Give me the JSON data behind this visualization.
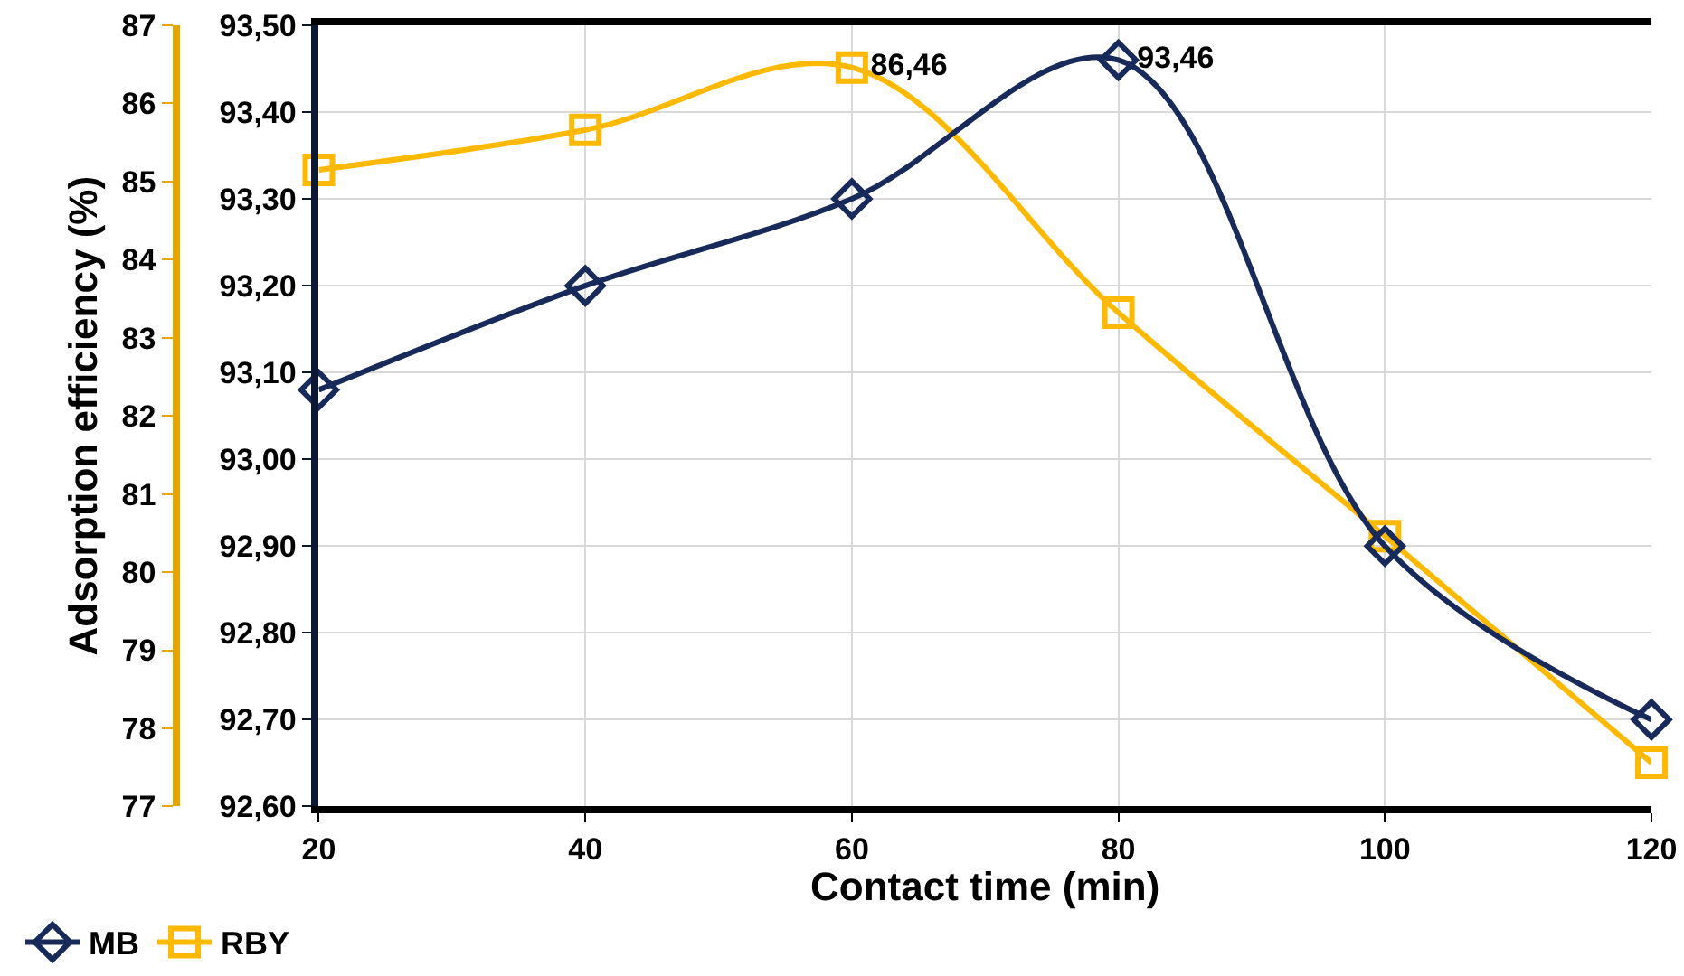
{
  "chart_data": {
    "type": "line",
    "xlabel": "Contact time (min)",
    "ylabel": "Adsorption efficiency (%)",
    "x": [
      20,
      40,
      60,
      80,
      100,
      120
    ],
    "series": [
      {
        "name": "MB",
        "color": "#172a5a",
        "axis": "y2",
        "marker": "diamond",
        "values": [
          93.08,
          93.2,
          93.3,
          93.46,
          92.9,
          92.7
        ],
        "value_labels": [
          null,
          null,
          null,
          "93,46",
          null,
          null
        ]
      },
      {
        "name": "RBY",
        "color": "#ffb900",
        "marker": "square",
        "values": [
          85.15,
          85.66,
          86.46,
          83.32,
          80.46,
          77.56
        ],
        "value_labels": [
          null,
          null,
          "86,46",
          null,
          null,
          null
        ]
      }
    ],
    "xlim": [
      20,
      120
    ],
    "xticks": [
      20,
      40,
      60,
      80,
      100,
      120
    ],
    "ylim": [
      77,
      87
    ],
    "yticks": [
      77,
      78,
      79,
      80,
      81,
      82,
      83,
      84,
      85,
      86,
      87
    ],
    "y2lim": [
      92.6,
      93.5
    ],
    "y2ticks": [
      {
        "value": 92.6,
        "label": "92,60"
      },
      {
        "value": 92.7,
        "label": "92,70"
      },
      {
        "value": 92.8,
        "label": "92,80"
      },
      {
        "value": 92.9,
        "label": "92,90"
      },
      {
        "value": 93.0,
        "label": "93,00"
      },
      {
        "value": 93.1,
        "label": "93,10"
      },
      {
        "value": 93.2,
        "label": "93,20"
      },
      {
        "value": 93.3,
        "label": "93,30"
      },
      {
        "value": 93.4,
        "label": "93,40"
      },
      {
        "value": 93.5,
        "label": "93,50"
      }
    ],
    "grid": true,
    "legend": "bottom left"
  }
}
